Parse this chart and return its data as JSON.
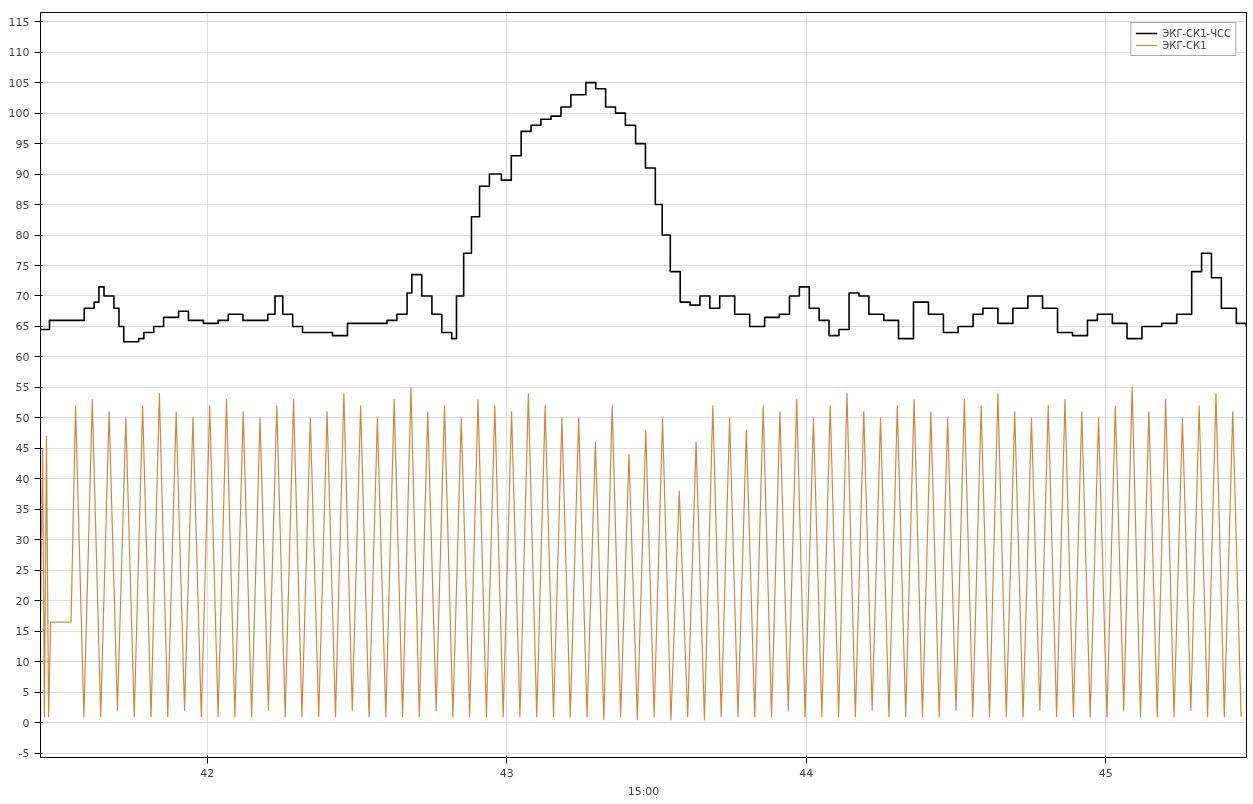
{
  "chart_data": {
    "type": "line",
    "xlabel": "15:00",
    "xlim": [
      41.443,
      45.47
    ],
    "ylim": [
      -5.7,
      116.5
    ],
    "xticks": [
      42,
      43,
      44,
      45
    ],
    "yticks": [
      -5,
      0,
      5,
      10,
      15,
      20,
      25,
      30,
      35,
      40,
      45,
      50,
      55,
      60,
      65,
      70,
      75,
      80,
      85,
      90,
      95,
      100,
      105,
      110,
      115
    ],
    "grid": true,
    "legend": "top right",
    "series": [
      {
        "name": "ЭКГ-СК1-ЧСС",
        "type": "step",
        "color": "#000000",
        "x": [
          41.443,
          41.473,
          41.572,
          41.589,
          41.622,
          41.638,
          41.655,
          41.688,
          41.705,
          41.721,
          41.771,
          41.788,
          41.821,
          41.854,
          41.904,
          41.937,
          41.987,
          42.036,
          42.07,
          42.119,
          42.202,
          42.226,
          42.252,
          42.285,
          42.318,
          42.385,
          42.418,
          42.468,
          42.551,
          42.6,
          42.633,
          42.667,
          42.683,
          42.716,
          42.75,
          42.783,
          42.816,
          42.832,
          42.856,
          42.882,
          42.909,
          42.942,
          42.982,
          43.015,
          43.048,
          43.081,
          43.114,
          43.148,
          43.181,
          43.214,
          43.264,
          43.297,
          43.33,
          43.363,
          43.396,
          43.43,
          43.463,
          43.496,
          43.519,
          43.546,
          43.579,
          43.612,
          43.645,
          43.678,
          43.711,
          43.761,
          43.811,
          43.861,
          43.91,
          43.944,
          43.977,
          44.01,
          44.043,
          44.076,
          44.109,
          44.143,
          44.176,
          44.209,
          44.259,
          44.308,
          44.358,
          44.408,
          44.458,
          44.507,
          44.557,
          44.59,
          44.64,
          44.69,
          44.74,
          44.789,
          44.839,
          44.889,
          44.939,
          44.972,
          45.022,
          45.071,
          45.121,
          45.187,
          45.237,
          45.287,
          45.32,
          45.353,
          45.386,
          45.436,
          45.469
        ],
        "values": [
          64.5,
          66,
          66,
          68,
          69,
          71.5,
          70,
          68,
          65,
          62.5,
          63,
          64,
          65,
          66.5,
          67.5,
          66,
          65.5,
          66,
          67,
          66,
          67,
          70,
          67,
          65,
          64,
          64,
          63.5,
          65.5,
          65.5,
          66,
          67,
          70.5,
          73.5,
          70,
          67,
          64,
          63,
          70,
          77,
          83,
          88,
          90,
          89,
          93,
          97,
          98,
          99,
          99.5,
          101,
          103,
          105,
          104,
          101,
          100,
          98,
          95,
          91,
          85,
          80,
          74,
          69,
          68.5,
          70,
          68,
          70,
          67,
          65,
          66.5,
          67,
          70,
          71.5,
          68,
          66,
          63.5,
          64.5,
          70.5,
          70,
          67,
          66,
          63,
          69,
          67,
          64,
          65,
          67,
          68,
          65.5,
          68,
          70,
          68,
          64,
          63.5,
          66,
          67,
          65.5,
          63,
          65,
          65.5,
          67,
          74,
          77,
          73,
          68,
          65.5,
          65
        ]
      },
      {
        "name": "ЭКГ-СК1",
        "color": "#d08840",
        "x": [
          41.443,
          41.45,
          41.456,
          41.463,
          41.47,
          41.477,
          41.545,
          41.56,
          41.588,
          41.616,
          41.644,
          41.672,
          41.7,
          41.728,
          41.756,
          41.784,
          41.812,
          41.84,
          41.868,
          41.896,
          41.924,
          41.952,
          41.98,
          42.008,
          42.036,
          42.064,
          42.092,
          42.12,
          42.148,
          42.176,
          42.204,
          42.232,
          42.26,
          42.288,
          42.316,
          42.344,
          42.372,
          42.4,
          42.428,
          42.456,
          42.484,
          42.512,
          42.54,
          42.568,
          42.596,
          42.624,
          42.652,
          42.68,
          42.708,
          42.736,
          42.764,
          42.792,
          42.82,
          42.848,
          42.876,
          42.904,
          42.932,
          42.96,
          42.988,
          43.016,
          43.044,
          43.072,
          43.1,
          43.128,
          43.156,
          43.184,
          43.212,
          43.24,
          43.268,
          43.296,
          43.324,
          43.352,
          43.38,
          43.408,
          43.436,
          43.464,
          43.492,
          43.52,
          43.548,
          43.576,
          43.604,
          43.632,
          43.66,
          43.688,
          43.716,
          43.744,
          43.772,
          43.8,
          43.828,
          43.856,
          43.884,
          43.912,
          43.94,
          43.968,
          43.996,
          44.024,
          44.052,
          44.08,
          44.108,
          44.136,
          44.164,
          44.192,
          44.22,
          44.248,
          44.276,
          44.304,
          44.332,
          44.36,
          44.388,
          44.416,
          44.444,
          44.472,
          44.5,
          44.528,
          44.556,
          44.584,
          44.612,
          44.64,
          44.668,
          44.696,
          44.724,
          44.752,
          44.78,
          44.808,
          44.836,
          44.864,
          44.892,
          44.92,
          44.948,
          44.976,
          45.004,
          45.032,
          45.06,
          45.088,
          45.116,
          45.144,
          45.172,
          45.2,
          45.228,
          45.256,
          45.284,
          45.312,
          45.34,
          45.368,
          45.396,
          45.424,
          45.452
        ],
        "values": [
          18,
          45,
          1,
          47,
          1,
          16.5,
          16.5,
          52,
          1,
          53,
          1,
          51,
          2,
          50,
          1,
          52,
          1,
          54,
          1,
          51,
          2,
          50,
          1,
          52,
          1,
          53,
          1,
          51,
          1,
          50,
          2,
          52,
          1,
          53,
          1,
          50,
          1,
          51,
          1,
          54,
          2,
          52,
          1,
          50,
          1,
          53,
          1,
          55,
          1,
          51,
          2,
          52,
          1,
          50,
          1,
          53,
          1,
          52,
          1,
          51,
          1,
          54,
          1,
          52,
          1,
          50,
          1,
          50,
          1,
          46,
          0.5,
          52,
          1,
          44,
          0.5,
          48,
          1,
          50,
          0.5,
          38,
          1,
          46,
          0.5,
          52,
          1,
          50,
          1,
          48,
          1,
          52,
          1,
          51,
          2,
          53,
          1,
          50,
          1,
          52,
          1,
          54,
          1,
          51,
          2,
          50,
          1,
          52,
          1,
          53,
          1,
          51,
          1,
          50,
          2,
          53,
          1,
          52,
          1,
          54,
          1,
          51,
          1,
          50,
          2,
          52,
          1,
          53,
          1,
          51,
          1,
          50,
          1,
          52,
          2,
          55,
          1,
          51,
          1,
          53,
          1,
          50,
          2,
          52,
          1,
          54,
          1,
          51,
          1
        ]
      }
    ]
  }
}
